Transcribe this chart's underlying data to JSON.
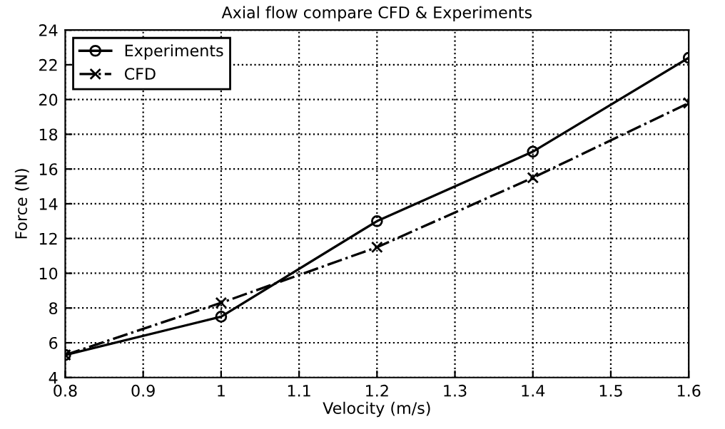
{
  "chart_data": {
    "type": "line",
    "title": "Axial flow compare CFD & Experiments",
    "xlabel": "Velocity (m/s)",
    "ylabel": "Force (N)",
    "x": [
      0.8,
      1.0,
      1.2,
      1.4,
      1.6
    ],
    "series": [
      {
        "name": "Experiments",
        "color": "#000000",
        "marker": "circle",
        "line_style": "solid",
        "values": [
          5.3,
          7.5,
          13.0,
          17.0,
          22.4
        ]
      },
      {
        "name": "CFD",
        "color": "#000000",
        "marker": "cross",
        "line_style": "dashdot",
        "values": [
          5.3,
          8.3,
          11.5,
          15.5,
          19.8
        ]
      }
    ],
    "xlim": [
      0.8,
      1.6
    ],
    "xticks": [
      0.8,
      0.9,
      1,
      1.1,
      1.2,
      1.3,
      1.4,
      1.5,
      1.6
    ],
    "ylim": [
      4,
      24
    ],
    "yticks": [
      4,
      6,
      8,
      10,
      12,
      14,
      16,
      18,
      20,
      22,
      24
    ],
    "grid": true,
    "legend": "top left"
  }
}
